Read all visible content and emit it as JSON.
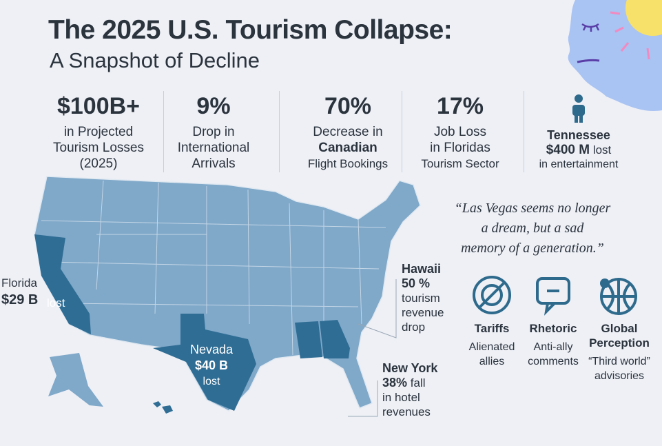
{
  "header": {
    "title": "The 2025 U.S. Tourism Collapse:",
    "subtitle": "A Snapshot of Decline"
  },
  "stats": [
    {
      "value": "$100B+",
      "lines": [
        "in Projected",
        "Tourism Losses",
        "(2025)"
      ]
    },
    {
      "value": "9%",
      "lines": [
        "Drop in",
        "International",
        "Arrivals"
      ]
    },
    {
      "value": "70%",
      "lines": [
        "Decrease in",
        "Canadian",
        "Flight Bookings"
      ]
    },
    {
      "value": "17%",
      "lines": [
        "Job Loss",
        "in Floridas",
        "Tourism Sector"
      ]
    }
  ],
  "tennessee": {
    "name": "Tennessee",
    "amount": "$400 M",
    "note": "lost",
    "detail": "in entertainment"
  },
  "callouts": {
    "florida": {
      "name": "Florida",
      "amount": "$29 B",
      "note": "lost"
    },
    "nevada": {
      "name": "Nevada",
      "amount": "$40 B",
      "note": "lost"
    },
    "hawaii": {
      "name": "Hawaii",
      "amount": "50 %",
      "lines": [
        "tourism",
        "revenue",
        "drop"
      ]
    },
    "new_york": {
      "name": "New York",
      "amount": "38%",
      "amount_note": "fall",
      "lines": [
        "in hotel",
        "revenues"
      ]
    }
  },
  "quote": [
    "“Las Vegas seems no longer",
    "a dream, but a sad",
    "memory of a generation.”"
  ],
  "factors": [
    {
      "label": "Tariffs",
      "lines": [
        "Alienated",
        "allies"
      ]
    },
    {
      "label": "Rhetoric",
      "lines": [
        "Anti-ally",
        "comments"
      ]
    },
    {
      "label": "Global",
      "label2": "Perception",
      "lines": [
        "“Third world”",
        "advisories"
      ]
    }
  ]
}
